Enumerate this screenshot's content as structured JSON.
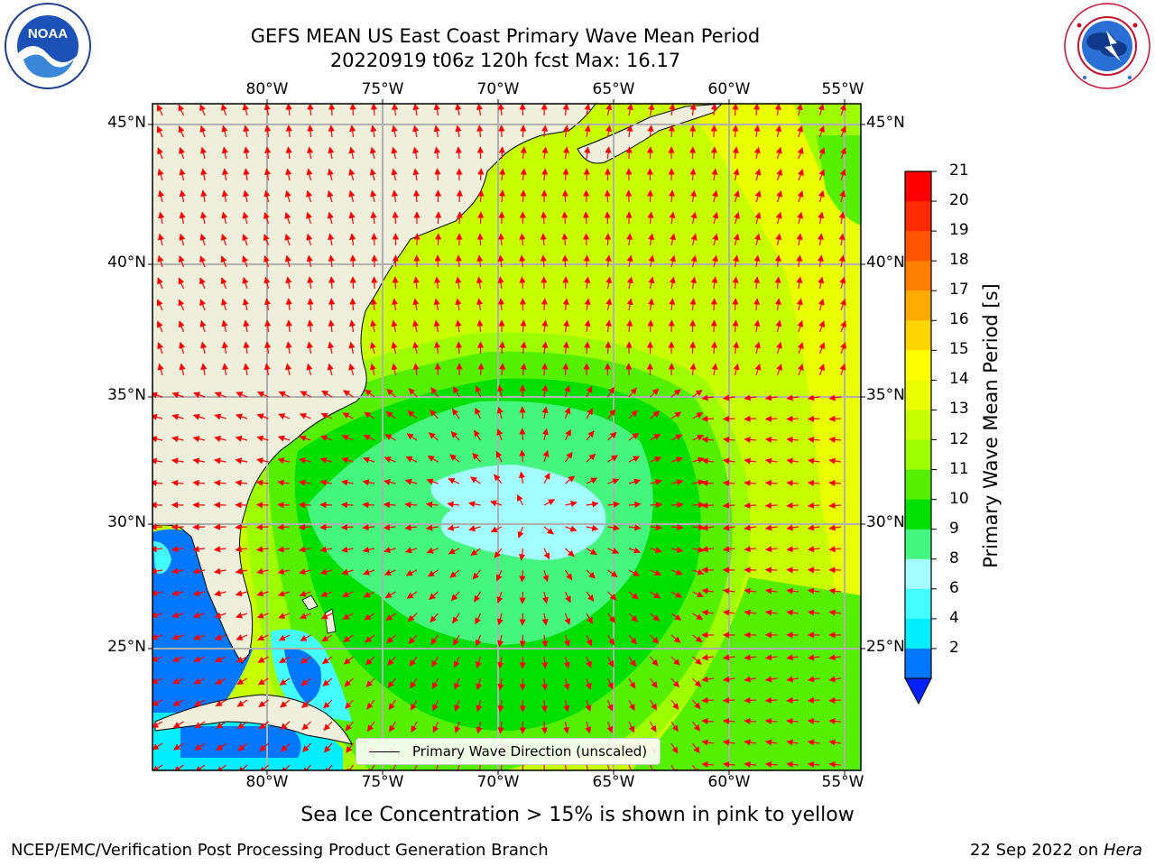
{
  "header": {
    "title_line1": "GEFS MEAN US East Coast Primary Wave Mean Period",
    "title_line2": "20220919 t06z 120h fcst   Max: 16.17"
  },
  "logos": {
    "left": {
      "name": "NOAA",
      "text": "NOAA",
      "ring_text": "NATIONAL OCEANIC AND ATMOSPHERIC ADMINISTRATION · U.S. DEPARTMENT OF COMMERCE"
    },
    "right": {
      "name": "National Weather Service",
      "ring_text": "NATIONAL WEATHER SERVICE"
    }
  },
  "map": {
    "lon_labels": [
      "80°W",
      "75°W",
      "70°W",
      "65°W",
      "60°W",
      "55°W"
    ],
    "lat_labels": [
      "45°N",
      "40°N",
      "35°N",
      "30°N",
      "25°N"
    ],
    "legend_label": "Primary Wave Direction (unscaled)"
  },
  "colorbar": {
    "label": "Primary Wave Mean Period [s]",
    "ticks": [
      "21",
      "20",
      "19",
      "18",
      "17",
      "16",
      "15",
      "14",
      "13",
      "12",
      "11",
      "10",
      "9",
      "8",
      "6",
      "4",
      "2"
    ],
    "colors": [
      "#ff0000",
      "#ff2a00",
      "#ff5500",
      "#ff8000",
      "#ffaa00",
      "#ffd500",
      "#ffff00",
      "#eaff00",
      "#c8ff00",
      "#9dff00",
      "#55f000",
      "#00e000",
      "#44f57e",
      "#a3ffff",
      "#44ffff",
      "#00eeff",
      "#0077ff"
    ],
    "extend_color": "#0022ff"
  },
  "footer": {
    "caption": "Sea Ice Concentration > 15% is shown in pink to yellow",
    "left": "NCEP/EMC/Verification Post Processing Product Generation Branch",
    "date": "22 Sep 2022 on ",
    "machine": "Hera"
  }
}
